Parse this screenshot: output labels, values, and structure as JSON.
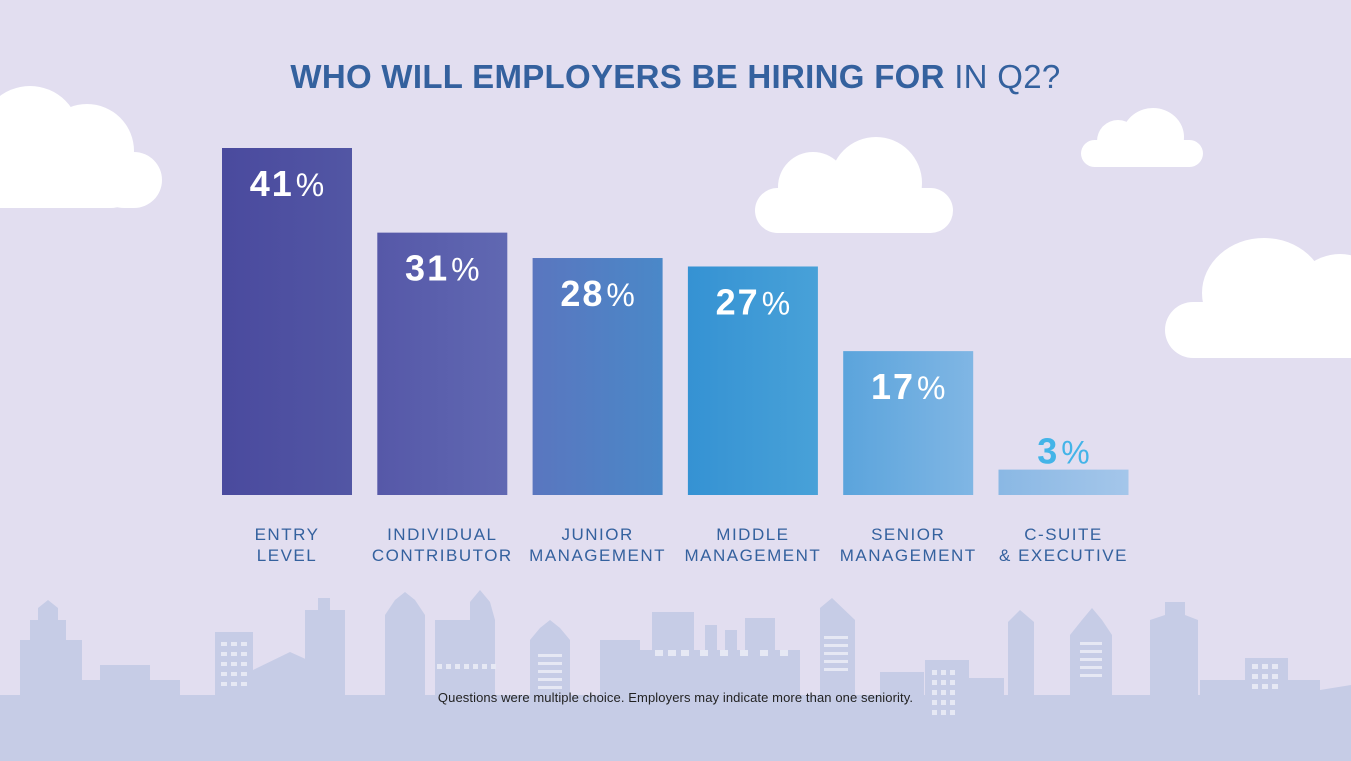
{
  "title": {
    "bold": "WHO WILL EMPLOYERS BE HIRING FOR",
    "light": "IN Q2?"
  },
  "chart_data": {
    "type": "bar",
    "title": "WHO WILL EMPLOYERS BE HIRING FOR IN Q2?",
    "categories": [
      [
        "ENTRY",
        "LEVEL"
      ],
      [
        "INDIVIDUAL",
        "CONTRIBUTOR"
      ],
      [
        "JUNIOR",
        "MANAGEMENT"
      ],
      [
        "MIDDLE",
        "MANAGEMENT"
      ],
      [
        "SENIOR",
        "MANAGEMENT"
      ],
      [
        "C-SUITE",
        "& EXECUTIVE"
      ]
    ],
    "values": [
      41,
      31,
      28,
      27,
      17,
      3
    ],
    "value_suffix": "%",
    "ylim": [
      0,
      41
    ],
    "xlabel": "",
    "ylabel": "",
    "grid": false,
    "bar_colors": [
      [
        "#4a4a9e",
        "#5256a4"
      ],
      [
        "#5658a8",
        "#6068b2"
      ],
      [
        "#5a76bf",
        "#4a88c8"
      ],
      [
        "#3592d3",
        "#48a1d8"
      ],
      [
        "#5ba4dc",
        "#80b6e4"
      ],
      [
        "#8ab8e4",
        "#a4c6ea"
      ]
    ],
    "label_color": "#ffffff",
    "small_label_color": "#44b4e8"
  },
  "footnote": "Questions were multiple choice. Employers may indicate more than one seniority."
}
